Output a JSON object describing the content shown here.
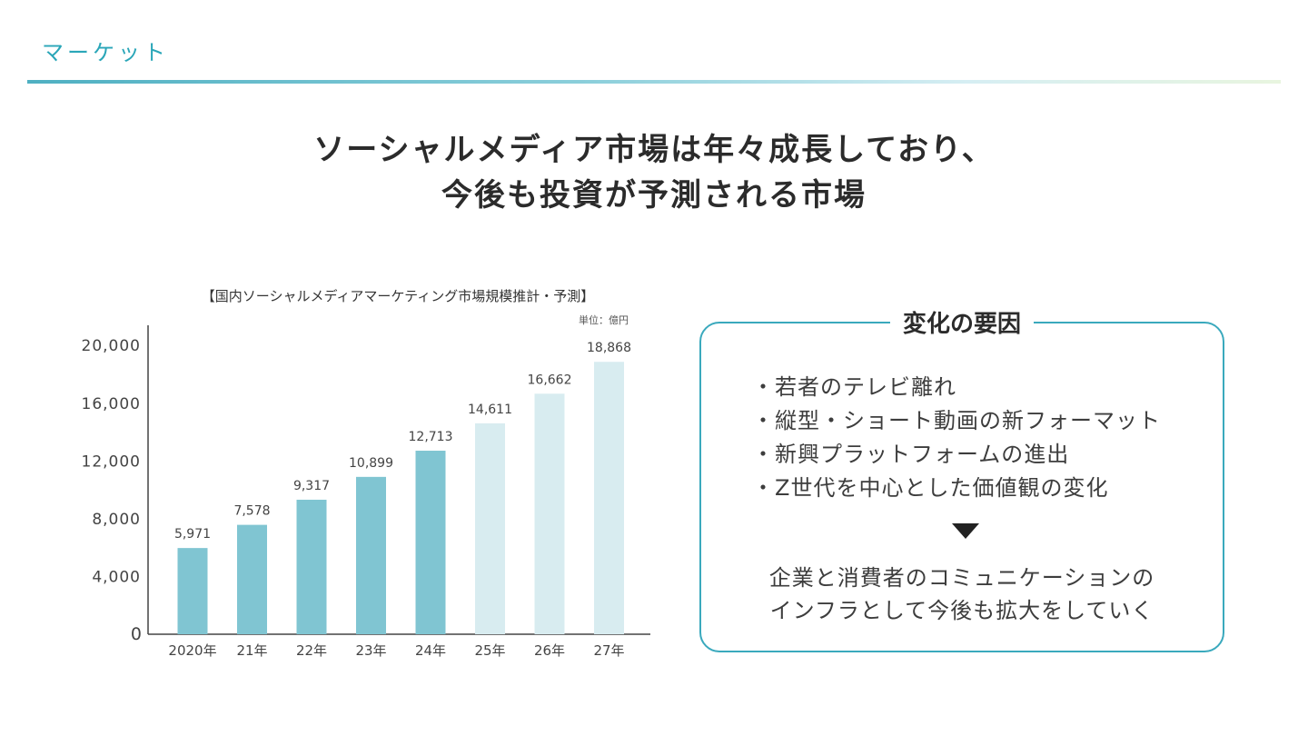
{
  "header": {
    "section_label": "マーケット"
  },
  "headline": {
    "line1": "ソーシャルメディア市場は年々成長しており、",
    "line2": "今後も投資が予測される市場"
  },
  "chart_data": {
    "type": "bar",
    "title": "【国内ソーシャルメディアマーケティング市場規模推計・予測】",
    "unit": "単位：億円",
    "categories": [
      "2020年",
      "21年",
      "22年",
      "23年",
      "24年",
      "25年",
      "26年",
      "27年"
    ],
    "values": [
      5971,
      7578,
      9317,
      10899,
      12713,
      14611,
      16662,
      18868
    ],
    "value_labels": [
      "5,971",
      "7,578",
      "9,317",
      "10,899",
      "12,713",
      "14,611",
      "16,662",
      "18,868"
    ],
    "forecast_from_index": 5,
    "ylim": [
      0,
      21400
    ],
    "yticks": [
      0,
      4000,
      8000,
      12000,
      16000,
      20000
    ],
    "ytick_labels": [
      "0",
      "4,000",
      "8,000",
      "12,000",
      "16,000",
      "20,000"
    ],
    "xlabel": "",
    "ylabel": "",
    "grid": false,
    "colors": {
      "actual": "#80c5d2",
      "forecast": "#d8ecf0",
      "axis": "#444444",
      "label": "#444444"
    }
  },
  "factors": {
    "title": "変化の要因",
    "items": [
      "若者のテレビ離れ",
      "縦型・ショート動画の新フォーマット",
      "新興プラットフォームの進出",
      "Z世代を中心とした価値観の変化"
    ],
    "arrow_icon": "down-triangle-icon",
    "conclusion_line1": "企業と消費者のコミュニケーションの",
    "conclusion_line2": "インフラとして今後も拡大をしていく"
  },
  "colors": {
    "accent": "#2aa6b8",
    "box_border": "#3aa9bd"
  }
}
